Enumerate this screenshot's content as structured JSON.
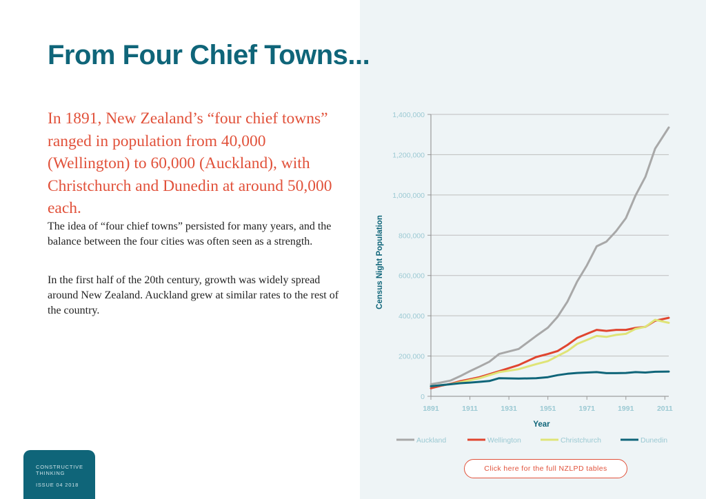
{
  "page": {
    "title": "From Four Chief Towns...",
    "lead": "In 1891, New Zealand’s “four chief towns” ranged in population from 40,000 (Wellington) to 60,000 (Auckland), with Christchurch and Dunedin at around 50,000 each.",
    "paragraphs": [
      "The idea of “four chief towns” persisted for many years, and the balance between the four cities was often seen as a strength.",
      "In the first half of the 20th century, growth was widely spread around New Zealand. Auckland grew at similar rates to the rest of the country."
    ],
    "footer": {
      "publication": "CONSTRUCTIVE THINKING",
      "issue": "ISSUE 04 2018"
    },
    "cta_label": "Click here for the full NZLPD tables",
    "colors": {
      "title": "#0f6579",
      "lead": "#e1513a",
      "panel_bg": "#eef4f6",
      "axis_text": "#9bc9d3",
      "axis_title": "#0f6579"
    }
  },
  "chart_data": {
    "type": "line",
    "xlabel": "Year",
    "ylabel": "Census Night Population",
    "xlim": [
      1891,
      2013
    ],
    "ylim": [
      0,
      1400000
    ],
    "x_ticks": [
      1891,
      1911,
      1931,
      1951,
      1971,
      1991,
      2011
    ],
    "y_ticks": [
      0,
      200000,
      400000,
      600000,
      800000,
      1000000,
      1200000,
      1400000
    ],
    "y_tick_labels": [
      "0",
      "200,000",
      "400,000",
      "600,000",
      "800,000",
      "1,000,000",
      "1,200,000",
      "1,400,000"
    ],
    "grid": "horizontal",
    "legend": "bottom",
    "series": [
      {
        "name": "Auckland",
        "color": "#a8a8a8",
        "x": [
          1891,
          1896,
          1901,
          1906,
          1911,
          1916,
          1921,
          1926,
          1936,
          1945,
          1951,
          1956,
          1961,
          1966,
          1971,
          1976,
          1981,
          1986,
          1991,
          1996,
          2001,
          2006,
          2013
        ],
        "y": [
          60000,
          68000,
          78000,
          100000,
          125000,
          148000,
          172000,
          210000,
          235000,
          300000,
          341000,
          395000,
          470000,
          570000,
          650000,
          745000,
          768000,
          820000,
          885000,
          998000,
          1090000,
          1230000,
          1335000
        ]
      },
      {
        "name": "Wellington",
        "color": "#e0452f",
        "x": [
          1891,
          1896,
          1901,
          1906,
          1911,
          1916,
          1921,
          1926,
          1936,
          1945,
          1951,
          1956,
          1961,
          1966,
          1971,
          1976,
          1981,
          1986,
          1991,
          1996,
          2001,
          2006,
          2013
        ],
        "y": [
          40000,
          52000,
          62000,
          75000,
          85000,
          95000,
          110000,
          125000,
          155000,
          195000,
          210000,
          225000,
          255000,
          290000,
          310000,
          330000,
          325000,
          330000,
          330000,
          340000,
          345000,
          375000,
          390000
        ]
      },
      {
        "name": "Christchurch",
        "color": "#dfe477",
        "x": [
          1891,
          1896,
          1901,
          1906,
          1911,
          1916,
          1921,
          1926,
          1936,
          1945,
          1951,
          1956,
          1961,
          1966,
          1971,
          1976,
          1981,
          1986,
          1991,
          1996,
          2001,
          2006,
          2013
        ],
        "y": [
          50000,
          55000,
          60000,
          70000,
          80000,
          90000,
          105000,
          120000,
          135000,
          160000,
          175000,
          200000,
          225000,
          260000,
          280000,
          300000,
          295000,
          305000,
          310000,
          335000,
          345000,
          380000,
          365000
        ]
      },
      {
        "name": "Dunedin",
        "color": "#0f6579",
        "x": [
          1891,
          1896,
          1901,
          1906,
          1911,
          1916,
          1921,
          1926,
          1936,
          1945,
          1951,
          1956,
          1961,
          1966,
          1971,
          1976,
          1981,
          1986,
          1991,
          1996,
          2001,
          2006,
          2013
        ],
        "y": [
          50000,
          55000,
          60000,
          65000,
          68000,
          72000,
          76000,
          90000,
          88000,
          90000,
          95000,
          105000,
          112000,
          116000,
          118000,
          120000,
          115000,
          115000,
          116000,
          120000,
          118000,
          122000,
          123000
        ]
      }
    ]
  }
}
